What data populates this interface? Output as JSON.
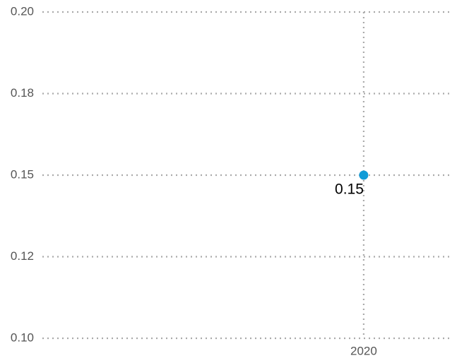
{
  "chart_data": {
    "type": "scatter",
    "x": [
      2020
    ],
    "values": [
      0.15
    ],
    "color": "#0f9bd7",
    "xlim": [
      2016,
      2021.1
    ],
    "xticks": [
      2020
    ],
    "ylim": [
      0.1,
      0.2
    ],
    "yticks": [
      {
        "value": 0.1,
        "label": "0.10"
      },
      {
        "value": 0.125,
        "label": "0.12"
      },
      0.15,
      {
        "value": 0.175,
        "label": "0.18"
      },
      {
        "value": 0.2,
        "label": "0.20"
      }
    ],
    "grid": true
  }
}
